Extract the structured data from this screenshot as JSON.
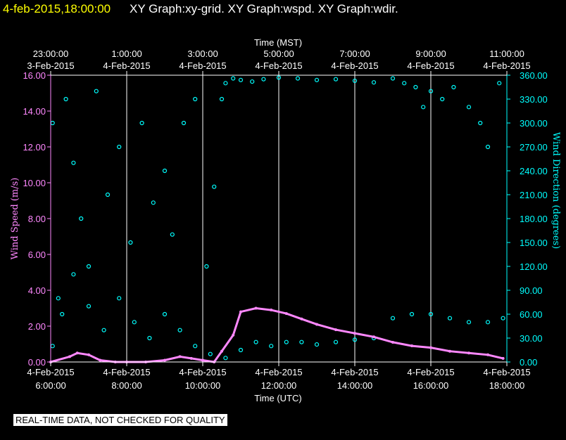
{
  "header": {
    "date": "4-feb-2015,18:00:00",
    "title": "XY Graph:xy-grid.  XY Graph:wspd.  XY Graph:wdir."
  },
  "disclaimer": "REAL-TIME DATA, NOT CHECKED FOR QUALITY",
  "chart_data": {
    "type": "scatter",
    "x_top_label": "Time (MST)",
    "x_bottom_label": "Time (UTC)",
    "y_left_label": "Wind Speed (m/s)",
    "y_right_label": "Wind Direction (degrees)",
    "xlim_utc_hours": [
      6,
      18
    ],
    "ylim_left": [
      0,
      16
    ],
    "ylim_right": [
      0,
      360
    ],
    "grid": "vertical",
    "colors": {
      "wspd": "#ff88ff",
      "wdir": "#00ffff",
      "grid": "#ffffff",
      "left_axis": "#ff88ff",
      "right_axis": "#00ffff"
    },
    "top_ticks": [
      {
        "utc": 6,
        "time": "23:00:00",
        "date": "3-Feb-2015"
      },
      {
        "utc": 8,
        "time": "1:00:00",
        "date": "4-Feb-2015"
      },
      {
        "utc": 10,
        "time": "3:00:00",
        "date": "4-Feb-2015"
      },
      {
        "utc": 12,
        "time": "5:00:00",
        "date": "4-Feb-2015"
      },
      {
        "utc": 14,
        "time": "7:00:00",
        "date": "4-Feb-2015"
      },
      {
        "utc": 16,
        "time": "9:00:00",
        "date": "4-Feb-2015"
      },
      {
        "utc": 18,
        "time": "11:00:00",
        "date": "4-Feb-2015"
      }
    ],
    "bottom_ticks": [
      {
        "utc": 6,
        "date": "4-Feb-2015",
        "time": "6:00:00"
      },
      {
        "utc": 8,
        "date": "4-Feb-2015",
        "time": "8:00:00"
      },
      {
        "utc": 10,
        "date": "4-Feb-2015",
        "time": "10:00:00"
      },
      {
        "utc": 12,
        "date": "4-Feb-2015",
        "time": "12:00:00"
      },
      {
        "utc": 14,
        "date": "4-Feb-2015",
        "time": "14:00:00"
      },
      {
        "utc": 16,
        "date": "4-Feb-2015",
        "time": "16:00:00"
      },
      {
        "utc": 18,
        "date": "4-Feb-2015",
        "time": "18:00:00"
      }
    ],
    "left_ticks": [
      "0.00",
      "2.00",
      "4.00",
      "6.00",
      "8.00",
      "10.00",
      "12.00",
      "14.00",
      "16.00"
    ],
    "left_tick_values": [
      0,
      2,
      4,
      6,
      8,
      10,
      12,
      14,
      16
    ],
    "right_ticks": [
      "0.00",
      "30.00",
      "60.00",
      "90.00",
      "120.00",
      "150.00",
      "180.00",
      "210.00",
      "240.00",
      "270.00",
      "300.00",
      "330.00",
      "360.00"
    ],
    "right_tick_values": [
      0,
      30,
      60,
      90,
      120,
      150,
      180,
      210,
      240,
      270,
      300,
      330,
      360
    ],
    "series": [
      {
        "key": "wspd",
        "axis": "left",
        "mark": "line",
        "x_utc": [
          6.0,
          6.5,
          6.7,
          7.0,
          7.3,
          7.7,
          8.0,
          8.5,
          9.0,
          9.4,
          9.7,
          10.0,
          10.3,
          10.5,
          10.8,
          11.0,
          11.4,
          11.8,
          12.2,
          12.6,
          13.0,
          13.5,
          14.0,
          14.5,
          15.0,
          15.5,
          16.0,
          16.5,
          17.0,
          17.5,
          17.9
        ],
        "values": [
          0.0,
          0.3,
          0.5,
          0.4,
          0.1,
          0.0,
          0.0,
          0.0,
          0.1,
          0.3,
          0.2,
          0.1,
          0.0,
          0.6,
          1.5,
          2.8,
          3.0,
          2.9,
          2.7,
          2.4,
          2.1,
          1.8,
          1.6,
          1.4,
          1.1,
          0.9,
          0.8,
          0.6,
          0.5,
          0.4,
          0.2
        ]
      },
      {
        "key": "wdir_high",
        "axis": "right",
        "mark": "points",
        "x_utc": [
          6.05,
          6.2,
          6.4,
          6.6,
          6.8,
          7.0,
          7.2,
          7.5,
          7.8,
          8.1,
          8.4,
          8.7,
          9.0,
          9.2,
          9.5,
          9.8,
          10.1,
          10.3,
          10.5,
          10.6,
          10.8,
          11.0,
          11.3,
          11.6,
          12.0,
          12.5,
          13.0,
          13.5,
          14.0,
          14.5,
          15.0,
          15.3,
          15.6,
          15.8,
          16.0,
          16.3,
          16.6,
          17.0,
          17.3,
          17.5,
          17.8
        ],
        "values": [
          300,
          80,
          330,
          250,
          180,
          120,
          340,
          210,
          270,
          150,
          300,
          200,
          240,
          160,
          300,
          330,
          120,
          220,
          330,
          350,
          356,
          354,
          352,
          355,
          357,
          356,
          354,
          355,
          353,
          351,
          356,
          350,
          345,
          320,
          340,
          330,
          345,
          320,
          300,
          270,
          350
        ]
      },
      {
        "key": "wdir_low",
        "axis": "right",
        "mark": "points",
        "x_utc": [
          6.05,
          6.3,
          6.6,
          7.0,
          7.4,
          7.8,
          8.2,
          8.6,
          9.0,
          9.4,
          9.8,
          10.2,
          10.6,
          11.0,
          11.4,
          11.8,
          12.2,
          12.6,
          13.0,
          13.5,
          14.0,
          14.5,
          15.0,
          15.5,
          16.0,
          16.5,
          17.0,
          17.5,
          17.9
        ],
        "values": [
          20,
          60,
          110,
          70,
          40,
          80,
          50,
          30,
          60,
          40,
          20,
          10,
          5,
          15,
          25,
          20,
          25,
          25,
          22,
          25,
          28,
          30,
          55,
          60,
          60,
          55,
          50,
          50,
          55
        ]
      }
    ]
  }
}
